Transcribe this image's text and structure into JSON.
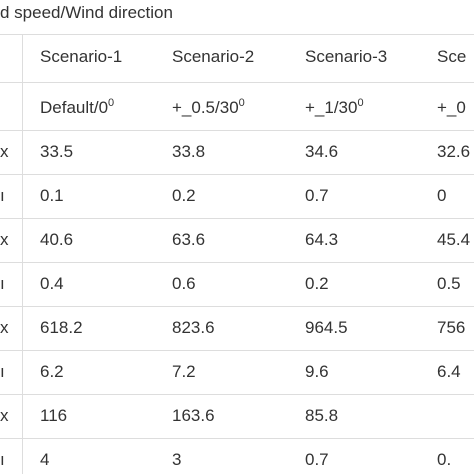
{
  "caption": "d speed/Wind direction",
  "table": {
    "header": [
      "Scenario-1",
      "Scenario-2",
      "Scenario-3",
      "Sce"
    ],
    "subheader": [
      {
        "text": "Default/0",
        "sup": "0"
      },
      {
        "text": "+_0.5/30",
        "sup": "0"
      },
      {
        "text": "+_1/30",
        "sup": "0"
      },
      {
        "text": "+_0"
      }
    ],
    "rows": [
      [
        "x",
        "33.5",
        "33.8",
        "34.6",
        "32.6"
      ],
      [
        "ı",
        "0.1",
        "0.2",
        "0.7",
        "0"
      ],
      [
        "x",
        "40.6",
        "63.6",
        "64.3",
        "45.4"
      ],
      [
        "ı",
        "0.4",
        "0.6",
        "0.2",
        "0.5"
      ],
      [
        "x",
        "618.2",
        "823.6",
        "964.5",
        "756"
      ],
      [
        "ı",
        "6.2",
        "7.2",
        "9.6",
        "6.4"
      ],
      [
        "x",
        "116",
        "163.6",
        "85.8",
        null
      ],
      [
        "ı",
        "4",
        "3",
        "0.7",
        "0."
      ]
    ]
  }
}
